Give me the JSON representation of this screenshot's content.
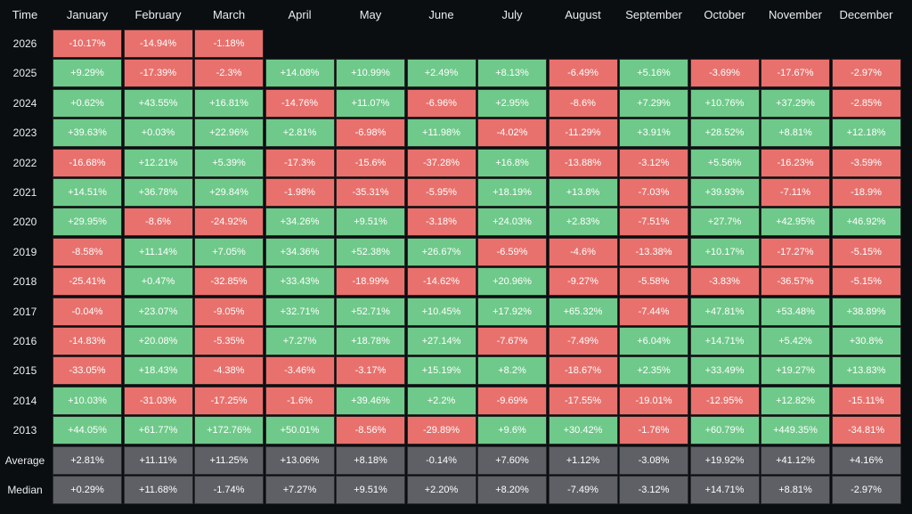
{
  "header": {
    "columns": [
      "Time",
      "January",
      "February",
      "March",
      "April",
      "May",
      "June",
      "July",
      "August",
      "September",
      "October",
      "November",
      "December"
    ]
  },
  "rows": [
    {
      "label": "2026",
      "cells": [
        "-10.17%",
        "-14.94%",
        "-1.18%"
      ]
    },
    {
      "label": "2025",
      "cells": [
        "+9.29%",
        "-17.39%",
        "-2.3%",
        "+14.08%",
        "+10.99%",
        "+2.49%",
        "+8.13%",
        "-6.49%",
        "+5.16%",
        "-3.69%",
        "-17.67%",
        "-2.97%"
      ]
    },
    {
      "label": "2024",
      "cells": [
        "+0.62%",
        "+43.55%",
        "+16.81%",
        "-14.76%",
        "+11.07%",
        "-6.96%",
        "+2.95%",
        "-8.6%",
        "+7.29%",
        "+10.76%",
        "+37.29%",
        "-2.85%"
      ]
    },
    {
      "label": "2023",
      "cells": [
        "+39.63%",
        "+0.03%",
        "+22.96%",
        "+2.81%",
        "-6.98%",
        "+11.98%",
        "-4.02%",
        "-11.29%",
        "+3.91%",
        "+28.52%",
        "+8.81%",
        "+12.18%"
      ]
    },
    {
      "label": "2022",
      "cells": [
        "-16.68%",
        "+12.21%",
        "+5.39%",
        "-17.3%",
        "-15.6%",
        "-37.28%",
        "+16.8%",
        "-13.88%",
        "-3.12%",
        "+5.56%",
        "-16.23%",
        "-3.59%"
      ]
    },
    {
      "label": "2021",
      "cells": [
        "+14.51%",
        "+36.78%",
        "+29.84%",
        "-1.98%",
        "-35.31%",
        "-5.95%",
        "+18.19%",
        "+13.8%",
        "-7.03%",
        "+39.93%",
        "-7.11%",
        "-18.9%"
      ]
    },
    {
      "label": "2020",
      "cells": [
        "+29.95%",
        "-8.6%",
        "-24.92%",
        "+34.26%",
        "+9.51%",
        "-3.18%",
        "+24.03%",
        "+2.83%",
        "-7.51%",
        "+27.7%",
        "+42.95%",
        "+46.92%"
      ]
    },
    {
      "label": "2019",
      "cells": [
        "-8.58%",
        "+11.14%",
        "+7.05%",
        "+34.36%",
        "+52.38%",
        "+26.67%",
        "-6.59%",
        "-4.6%",
        "-13.38%",
        "+10.17%",
        "-17.27%",
        "-5.15%"
      ]
    },
    {
      "label": "2018",
      "cells": [
        "-25.41%",
        "+0.47%",
        "-32.85%",
        "+33.43%",
        "-18.99%",
        "-14.62%",
        "+20.96%",
        "-9.27%",
        "-5.58%",
        "-3.83%",
        "-36.57%",
        "-5.15%"
      ]
    },
    {
      "label": "2017",
      "cells": [
        "-0.04%",
        "+23.07%",
        "-9.05%",
        "+32.71%",
        "+52.71%",
        "+10.45%",
        "+17.92%",
        "+65.32%",
        "-7.44%",
        "+47.81%",
        "+53.48%",
        "+38.89%"
      ]
    },
    {
      "label": "2016",
      "cells": [
        "-14.83%",
        "+20.08%",
        "-5.35%",
        "+7.27%",
        "+18.78%",
        "+27.14%",
        "-7.67%",
        "-7.49%",
        "+6.04%",
        "+14.71%",
        "+5.42%",
        "+30.8%"
      ]
    },
    {
      "label": "2015",
      "cells": [
        "-33.05%",
        "+18.43%",
        "-4.38%",
        "-3.46%",
        "-3.17%",
        "+15.19%",
        "+8.2%",
        "-18.67%",
        "+2.35%",
        "+33.49%",
        "+19.27%",
        "+13.83%"
      ]
    },
    {
      "label": "2014",
      "cells": [
        "+10.03%",
        "-31.03%",
        "-17.25%",
        "-1.6%",
        "+39.46%",
        "+2.2%",
        "-9.69%",
        "-17.55%",
        "-19.01%",
        "-12.95%",
        "+12.82%",
        "-15.11%"
      ]
    },
    {
      "label": "2013",
      "cells": [
        "+44.05%",
        "+61.77%",
        "+172.76%",
        "+50.01%",
        "-8.56%",
        "-29.89%",
        "+9.6%",
        "+30.42%",
        "-1.76%",
        "+60.79%",
        "+449.35%",
        "-34.81%"
      ]
    }
  ],
  "summary_rows": [
    {
      "label": "Average",
      "cells": [
        "+2.81%",
        "+11.11%",
        "+11.25%",
        "+13.06%",
        "+8.18%",
        "-0.14%",
        "+7.60%",
        "+1.12%",
        "-3.08%",
        "+19.92%",
        "+41.12%",
        "+4.16%"
      ]
    },
    {
      "label": "Median",
      "cells": [
        "+0.29%",
        "+11.68%",
        "-1.74%",
        "+7.27%",
        "+9.51%",
        "+2.20%",
        "+8.20%",
        "-7.49%",
        "-3.12%",
        "+14.71%",
        "+8.81%",
        "-2.97%"
      ]
    }
  ]
}
